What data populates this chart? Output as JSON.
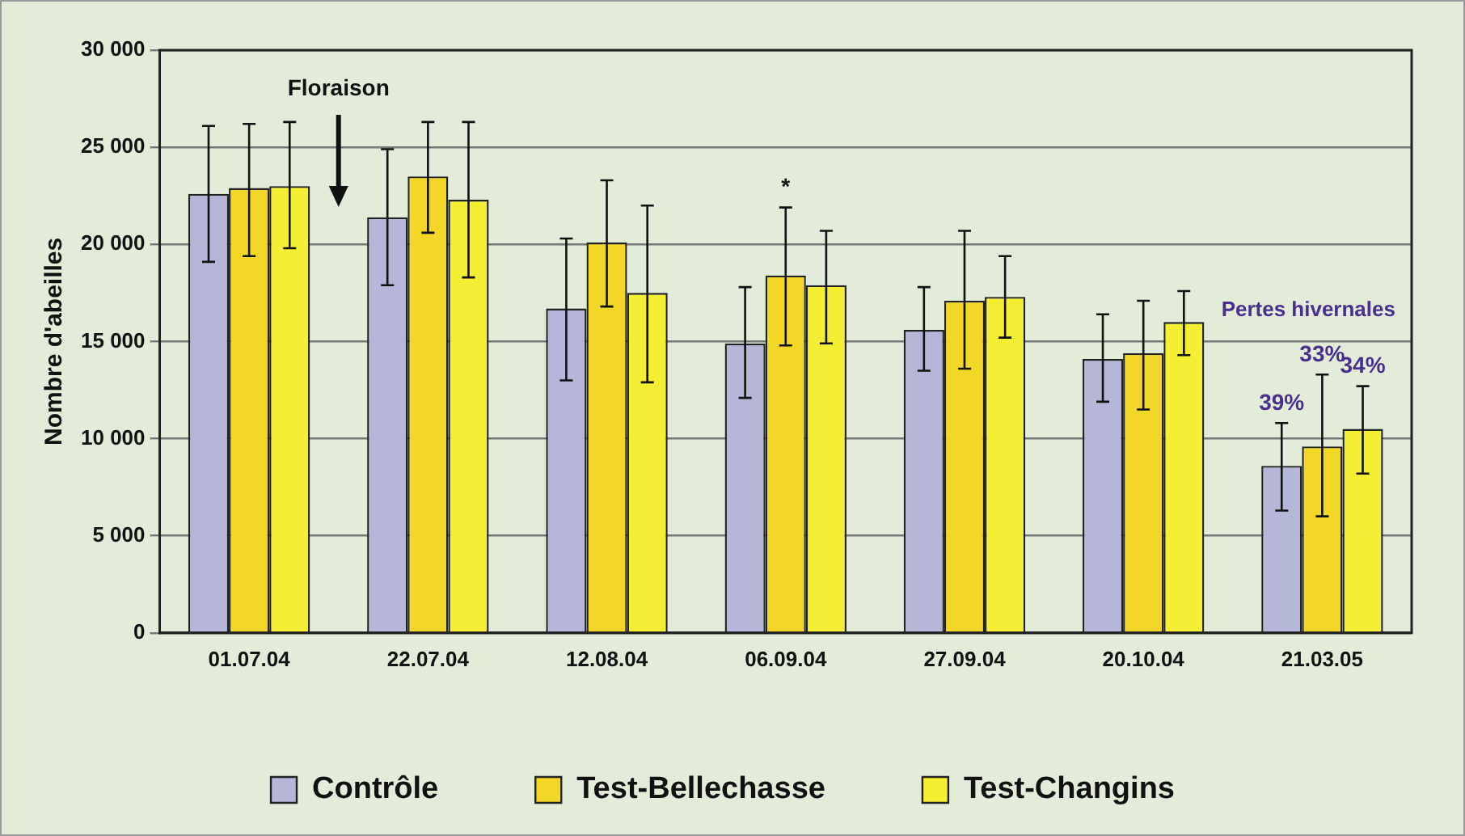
{
  "chart_data": {
    "type": "bar",
    "ylabel": "Nombre d'abeilles",
    "categories": [
      "01.07.04",
      "22.07.04",
      "12.08.04",
      "06.09.04",
      "27.09.04",
      "20.10.04",
      "21.03.05"
    ],
    "series": [
      {
        "name": "Contrôle",
        "color": "#b6b6d8",
        "values": [
          22600,
          21400,
          16700,
          14900,
          15600,
          14100,
          8600
        ],
        "errors": [
          [
            19100,
            26100
          ],
          [
            17900,
            24900
          ],
          [
            13000,
            20300
          ],
          [
            12100,
            17800
          ],
          [
            13500,
            17800
          ],
          [
            11900,
            16400
          ],
          [
            6300,
            10800
          ]
        ]
      },
      {
        "name": "Test-Bellechasse",
        "color": "#f3d726",
        "values": [
          22900,
          23500,
          20100,
          18400,
          17100,
          14400,
          9600
        ],
        "errors": [
          [
            19400,
            26200
          ],
          [
            20600,
            26300
          ],
          [
            16800,
            23300
          ],
          [
            14800,
            21900
          ],
          [
            13600,
            20700
          ],
          [
            11500,
            17100
          ],
          [
            6000,
            13300
          ]
        ]
      },
      {
        "name": "Test-Changins",
        "color": "#f5ef34",
        "values": [
          23000,
          22300,
          17500,
          17900,
          17300,
          16000,
          10500
        ],
        "errors": [
          [
            19800,
            26300
          ],
          [
            18300,
            26300
          ],
          [
            12900,
            22000
          ],
          [
            14900,
            20700
          ],
          [
            15200,
            19400
          ],
          [
            14300,
            17600
          ],
          [
            8200,
            12700
          ]
        ]
      }
    ],
    "ylim": [
      0,
      30000
    ],
    "yticks": [
      0,
      {
        "value": 5000,
        "label": "5 000"
      },
      {
        "value": 10000,
        "label": "10 000"
      },
      {
        "value": 15000,
        "label": "15 000"
      },
      {
        "value": 20000,
        "label": "20 000"
      },
      {
        "value": 25000,
        "label": "25 000"
      },
      {
        "value": 30000,
        "label": "30 000"
      }
    ],
    "grid": "y",
    "legend": "bottom",
    "annotations": [
      "Floraison",
      "Pertes hivernales",
      "*",
      {
        "text": "39%",
        "x": "21.03.05",
        "y": 8600
      },
      "33%",
      {
        "text": "34%",
        "x": "21.03.05",
        "y": 10500
      }
    ]
  }
}
